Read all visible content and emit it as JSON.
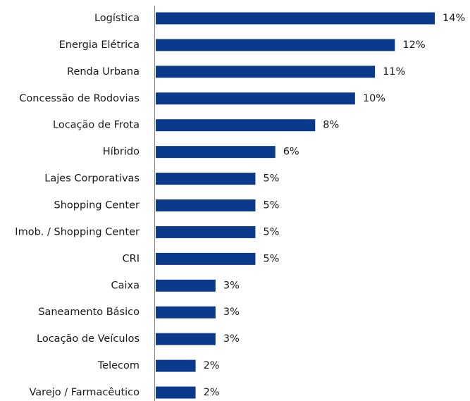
{
  "chart_data": {
    "type": "bar",
    "orientation": "horizontal",
    "categories": [
      "Logística",
      "Energia Elétrica",
      "Renda Urbana",
      "Concessão de Rodovias",
      "Locação de Frota",
      "Híbrido",
      "Lajes Corporativas",
      "Shopping Center",
      "Imob. / Shopping Center",
      "CRI",
      "Caixa",
      "Saneamento Básico",
      "Locação de Veículos",
      "Telecom",
      "Varejo / Farmacêutico"
    ],
    "values": [
      14,
      12,
      11,
      10,
      8,
      6,
      5,
      5,
      5,
      5,
      3,
      3,
      3,
      2,
      2
    ],
    "value_labels": [
      "14%",
      "12%",
      "11%",
      "10%",
      "8%",
      "6%",
      "5%",
      "5%",
      "5%",
      "5%",
      "3%",
      "3%",
      "3%",
      "2%",
      "2%"
    ],
    "color": "#0b3a8c"
  }
}
